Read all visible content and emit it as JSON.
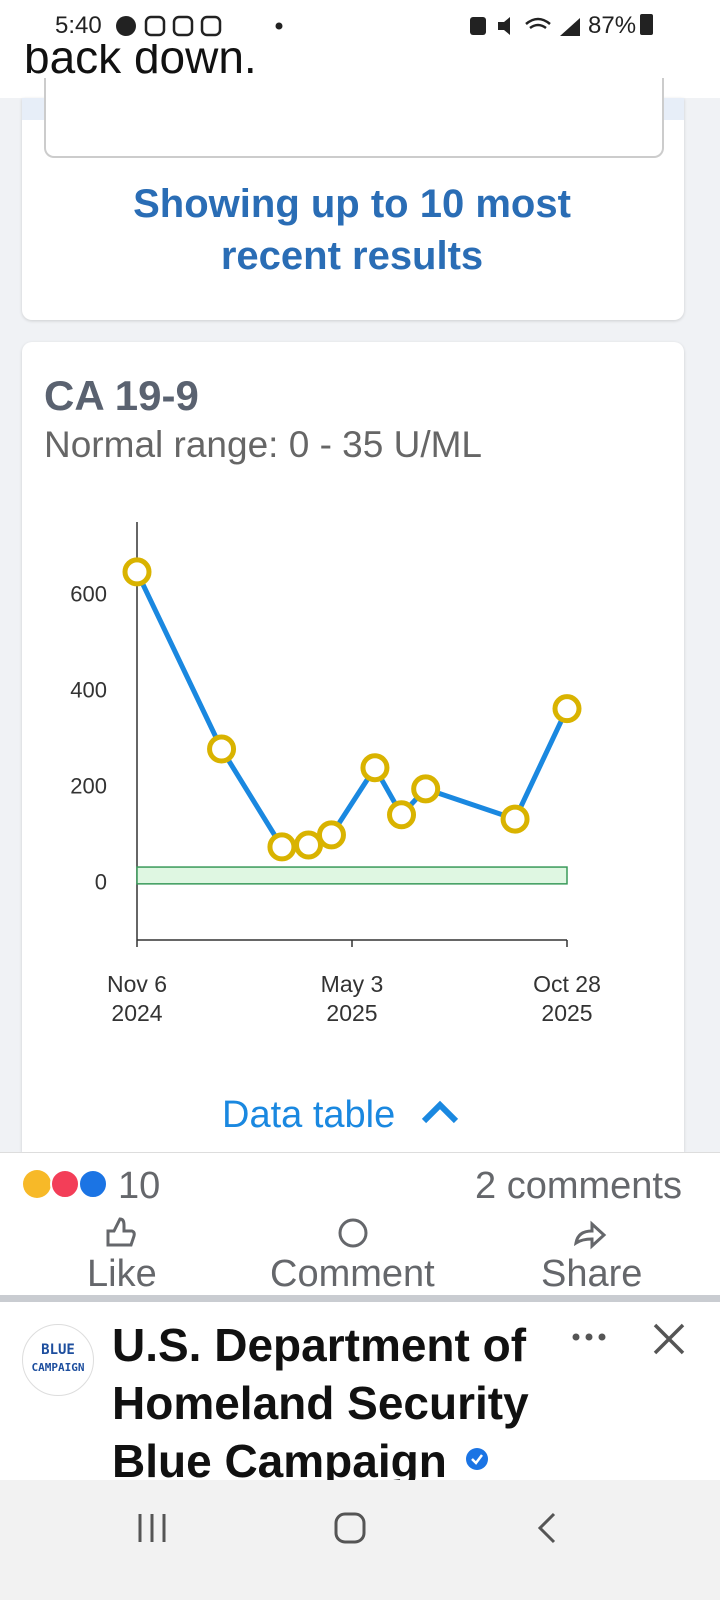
{
  "status_bar": {
    "time": "5:40",
    "battery": "87%"
  },
  "post_text_tail": "back down.",
  "filter_note": "Showing up to 10 most recent results",
  "chart_data": {
    "type": "line",
    "title": "CA 19-9",
    "subtitle": "Normal range: 0 - 35 U/ML",
    "x": [
      "2024-11-06",
      "2025-01-15",
      "2025-03-06",
      "2025-03-28",
      "2025-04-16",
      "2025-05-22",
      "2025-06-13",
      "2025-07-03",
      "2025-09-15",
      "2025-10-28"
    ],
    "values": [
      650,
      281,
      77,
      81,
      102,
      242,
      144,
      198,
      135,
      365
    ],
    "color": "#1a88e0",
    "marker_color": "#d9b300",
    "normal_range": [
      0,
      35
    ],
    "normal_range_color": "#dff7e2",
    "xlim": [
      "2024-11-06",
      "2025-10-28"
    ],
    "xticks": [
      {
        "value": "2024-11-06",
        "label": "Nov 6\n2024"
      },
      {
        "value": "2025-05-03",
        "label": "May 3\n2025"
      },
      {
        "value": "2025-10-28",
        "label": "Oct 28\n2025"
      }
    ],
    "ylim": [
      -117,
      754
    ],
    "yticks": [
      0,
      200,
      400,
      600
    ],
    "grid": false
  },
  "data_table_link": "Data table",
  "reactions": {
    "count": 10,
    "comments": "2 comments"
  },
  "actions": [
    "Like",
    "Comment",
    "Share"
  ],
  "next_post": {
    "logo_lines": [
      "BLUE",
      "CAMPAIGN"
    ],
    "author": "U.S. Department of Homeland Security Blue Campaign"
  }
}
